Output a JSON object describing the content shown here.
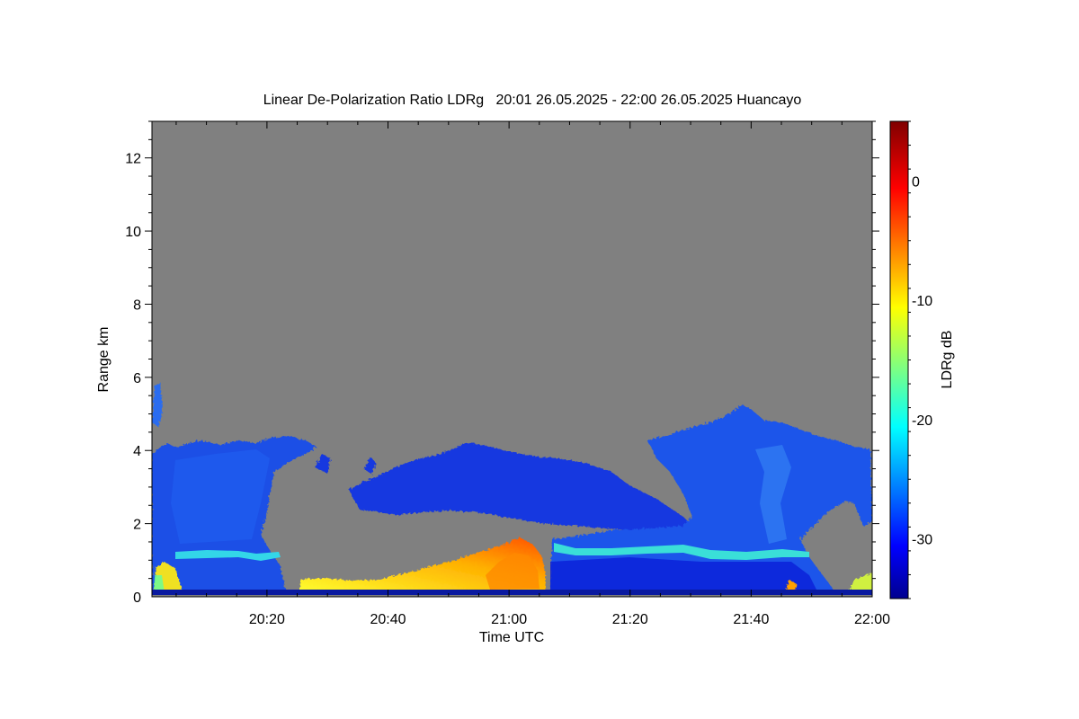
{
  "chart_data": {
    "type": "heatmap",
    "title": "Linear De-Polarization Ratio LDRg   20:01 26.05.2025 - 22:00 26.05.2025 Huancayo",
    "xlabel": "Time UTC",
    "ylabel": "Range km",
    "colorbar_label": "LDRg dB",
    "x_range_minutes_utc": [
      "20:01",
      "22:00"
    ],
    "x_ticks": [
      "20:20",
      "20:40",
      "21:00",
      "21:20",
      "21:40",
      "22:00"
    ],
    "x_tick_minutes": [
      1220,
      1240,
      1260,
      1280,
      1300,
      1320
    ],
    "x_start_minute": 1201,
    "x_end_minute": 1320,
    "y_ticks": [
      "0",
      "2",
      "4",
      "6",
      "8",
      "10",
      "12"
    ],
    "y_tick_values": [
      0,
      2,
      4,
      6,
      8,
      10,
      12
    ],
    "ylim": [
      0,
      13
    ],
    "colorbar_ticks": [
      "0",
      "-10",
      "-20",
      "-30"
    ],
    "colorbar_tick_values": [
      0,
      -10,
      -20,
      -30
    ],
    "colorbar_range": [
      -35,
      5
    ],
    "colormap": "jet",
    "no_data_color": "#808080",
    "features": [
      {
        "name": "low-depol cloud/aerosol layer",
        "ldr_db": -30,
        "segments": [
          {
            "time_start": "20:01",
            "time_end": "20:26",
            "range_km": [
              0.15,
              4.3
            ]
          },
          {
            "time_start": "20:34",
            "time_end": "21:40",
            "range_km": [
              1.7,
              4.1
            ]
          },
          {
            "time_start": "21:08",
            "time_end": "22:00",
            "range_km": [
              0.15,
              5.0
            ]
          }
        ]
      },
      {
        "name": "boundary-layer band",
        "ldr_db": -20,
        "segments": [
          {
            "time_start": "20:04",
            "time_end": "20:23",
            "range_km": [
              1.05,
              1.3
            ]
          },
          {
            "time_start": "21:08",
            "time_end": "21:50",
            "range_km": [
              1.0,
              1.35
            ]
          }
        ]
      },
      {
        "name": "high-depol near-surface signal",
        "ldr_db": -8,
        "segments": [
          {
            "time_start": "20:25",
            "time_end": "21:07",
            "range_km": [
              0.15,
              1.5
            ]
          }
        ]
      }
    ]
  }
}
